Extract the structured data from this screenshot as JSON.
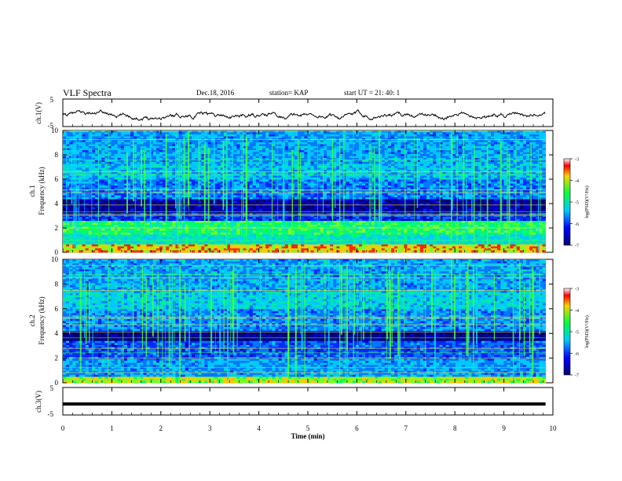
{
  "header": {
    "title": "VLF Spectra",
    "date": "Dec.18, 2016",
    "station": "station= KAP",
    "start": "start UT =  21: 40: 1"
  },
  "chart_data": [
    {
      "type": "line",
      "panel": "ch1-waveform",
      "ylabel": "ch.1(V)",
      "ylim": [
        -5,
        5
      ],
      "yticks": [
        "5",
        "-5"
      ],
      "xlim": [
        0,
        10
      ],
      "series": [
        {
          "description_free": true,
          "values_note": "noisy voltage trace oscillating roughly between -3 and 1 V"
        }
      ]
    },
    {
      "type": "heatmap",
      "panel": "ch1-spectrogram",
      "ylabel": "Frequency (kHz)",
      "channel_label": "ch.1",
      "ylim": [
        0,
        10
      ],
      "yticks": [
        "0",
        "2",
        "4",
        "6",
        "8",
        "10"
      ],
      "xlim": [
        0,
        9.85
      ],
      "colorbar": {
        "label": "log(PSD)(V²/Hz)",
        "range": [
          -7,
          -3
        ],
        "ticks": [
          "-3",
          "-4",
          "-5",
          "-6",
          "-7"
        ]
      }
    },
    {
      "type": "heatmap",
      "panel": "ch2-spectrogram",
      "ylabel": "Frequency (kHz)",
      "channel_label": "ch.2",
      "ylim": [
        0,
        10
      ],
      "yticks": [
        "0",
        "2",
        "4",
        "6",
        "8",
        "10"
      ],
      "xlim": [
        0,
        9.85
      ],
      "colorbar": {
        "label": "log(PSD)(V²/Hz)",
        "range": [
          -7,
          -3
        ],
        "ticks": [
          "-3",
          "-4",
          "-5",
          "-6",
          "-7"
        ]
      }
    },
    {
      "type": "line",
      "panel": "ch3-waveform",
      "ylabel": "ch.3(V)",
      "ylim": [
        -5,
        5
      ],
      "yticks": [
        "5",
        "-5"
      ],
      "xlim": [
        0,
        10
      ],
      "series": [
        {
          "constant_value": -1
        }
      ]
    }
  ],
  "xaxis": {
    "label": "Time (min)",
    "ticks": [
      "0",
      "1",
      "2",
      "3",
      "4",
      "5",
      "6",
      "7",
      "8",
      "9",
      "10"
    ]
  },
  "colors": {
    "deep": "#00007a",
    "mid": "#00c8ff",
    "high": "#30ff30",
    "peak": "#ff0000"
  }
}
